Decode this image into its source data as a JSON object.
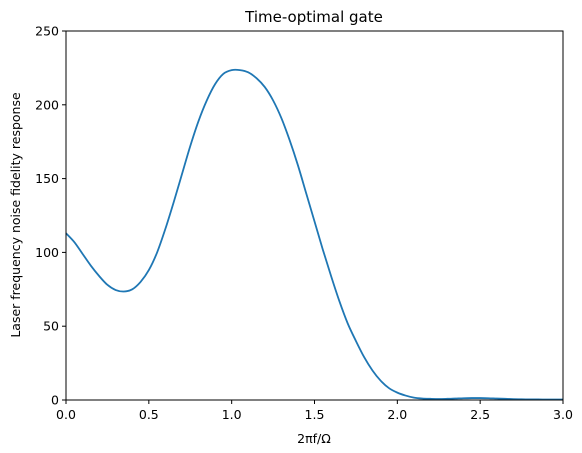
{
  "chart_data": {
    "type": "line",
    "title": "Time-optimal gate",
    "xlabel": "2πf/Ω",
    "ylabel": "Laser frequency noise fidelity response",
    "xlim": [
      0,
      3
    ],
    "ylim": [
      0,
      250
    ],
    "xticks": [
      0.0,
      0.5,
      1.0,
      1.5,
      2.0,
      2.5,
      3.0
    ],
    "xtick_labels": [
      "0.0",
      "0.5",
      "1.0",
      "1.5",
      "2.0",
      "2.5",
      "3.0"
    ],
    "yticks": [
      0,
      50,
      100,
      150,
      200,
      250
    ],
    "ytick_labels": [
      "0",
      "50",
      "100",
      "150",
      "200",
      "250"
    ],
    "grid": false,
    "series": [
      {
        "color": "#1f77b4",
        "x": [
          0.0,
          0.05,
          0.1,
          0.15,
          0.2,
          0.25,
          0.3,
          0.35,
          0.4,
          0.45,
          0.5,
          0.55,
          0.6,
          0.65,
          0.7,
          0.75,
          0.8,
          0.85,
          0.9,
          0.95,
          1.0,
          1.05,
          1.1,
          1.15,
          1.2,
          1.25,
          1.3,
          1.35,
          1.4,
          1.45,
          1.5,
          1.55,
          1.6,
          1.65,
          1.7,
          1.75,
          1.8,
          1.85,
          1.9,
          1.95,
          2.0,
          2.05,
          2.1,
          2.15,
          2.2,
          2.25,
          2.3,
          2.35,
          2.4,
          2.45,
          2.5,
          2.55,
          2.6,
          2.65,
          2.7,
          2.75,
          2.8,
          2.85,
          2.9,
          2.95,
          3.0
        ],
        "y": [
          113,
          107,
          99,
          91,
          84,
          78,
          74.5,
          73.5,
          75,
          80,
          88,
          100,
          116,
          134,
          153,
          172,
          189,
          203,
          214,
          221,
          223.5,
          223.5,
          222,
          218,
          212,
          203,
          191,
          176,
          159,
          140,
          121,
          102,
          84,
          67,
          52,
          40,
          29,
          20,
          13,
          8,
          5,
          3,
          1.6,
          1.0,
          0.8,
          0.7,
          0.8,
          1.0,
          1.2,
          1.3,
          1.3,
          1.2,
          1.0,
          0.8,
          0.6,
          0.5,
          0.4,
          0.4,
          0.3,
          0.3,
          0.3
        ]
      }
    ]
  }
}
